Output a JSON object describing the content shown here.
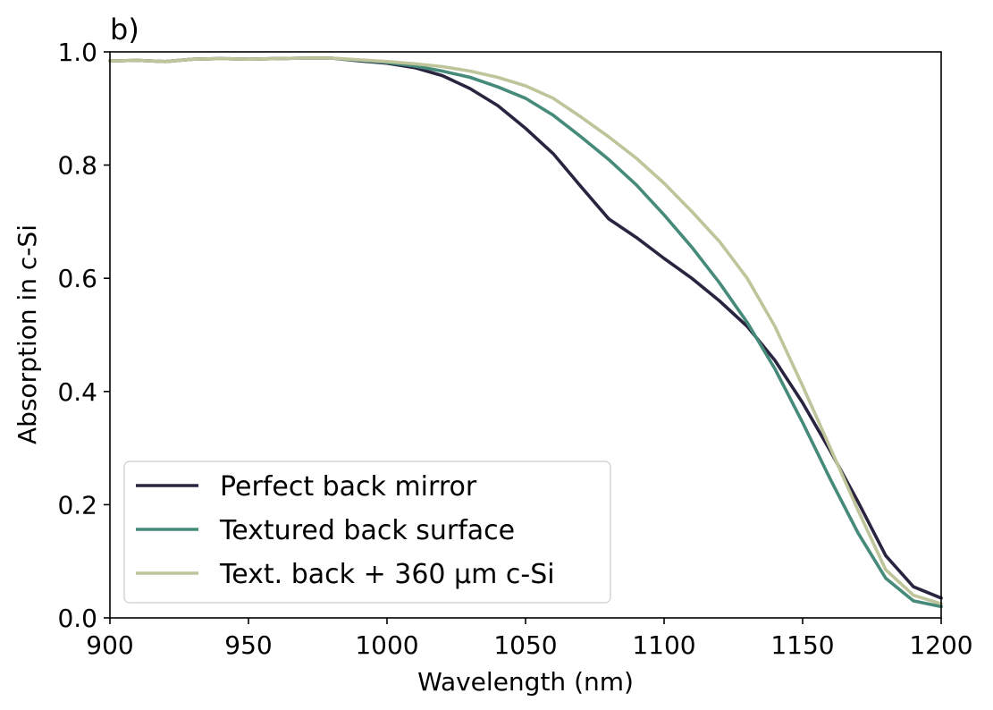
{
  "chart_data": {
    "type": "line",
    "panel_label": "b)",
    "xlabel": "Wavelength (nm)",
    "ylabel": "Absorption in c-Si",
    "xlim": [
      900,
      1200
    ],
    "ylim": [
      0.0,
      1.0
    ],
    "xticks": [
      "900",
      "950",
      "1000",
      "1050",
      "1100",
      "1150",
      "1200"
    ],
    "yticks": [
      "0.0",
      "0.2",
      "0.4",
      "0.6",
      "0.8",
      "1.0"
    ],
    "grid": false,
    "legend_position": "lower-left",
    "x": [
      900,
      910,
      920,
      930,
      940,
      950,
      960,
      970,
      980,
      990,
      1000,
      1010,
      1020,
      1030,
      1040,
      1050,
      1060,
      1070,
      1080,
      1090,
      1100,
      1110,
      1120,
      1130,
      1140,
      1150,
      1160,
      1170,
      1180,
      1190,
      1200
    ],
    "series": [
      {
        "name": "Perfect back mirror",
        "color": "#2a2440",
        "values": [
          0.984,
          0.985,
          0.983,
          0.987,
          0.988,
          0.987,
          0.988,
          0.989,
          0.989,
          0.984,
          0.98,
          0.972,
          0.958,
          0.935,
          0.905,
          0.865,
          0.82,
          0.762,
          0.705,
          0.672,
          0.635,
          0.6,
          0.56,
          0.515,
          0.455,
          0.38,
          0.295,
          0.205,
          0.11,
          0.055,
          0.035
        ]
      },
      {
        "name": "Textured back surface",
        "color": "#468a7a",
        "values": [
          0.984,
          0.985,
          0.983,
          0.987,
          0.988,
          0.987,
          0.988,
          0.989,
          0.989,
          0.985,
          0.981,
          0.975,
          0.966,
          0.955,
          0.938,
          0.918,
          0.888,
          0.85,
          0.81,
          0.765,
          0.712,
          0.655,
          0.592,
          0.522,
          0.44,
          0.345,
          0.245,
          0.15,
          0.07,
          0.03,
          0.02
        ]
      },
      {
        "name": "Text. back + 360 μm c-Si",
        "color": "#bfc49a",
        "values": [
          0.984,
          0.985,
          0.983,
          0.987,
          0.988,
          0.987,
          0.988,
          0.989,
          0.989,
          0.986,
          0.983,
          0.979,
          0.974,
          0.966,
          0.955,
          0.94,
          0.918,
          0.885,
          0.85,
          0.812,
          0.768,
          0.718,
          0.665,
          0.6,
          0.515,
          0.41,
          0.3,
          0.19,
          0.085,
          0.04,
          0.025
        ]
      }
    ]
  }
}
